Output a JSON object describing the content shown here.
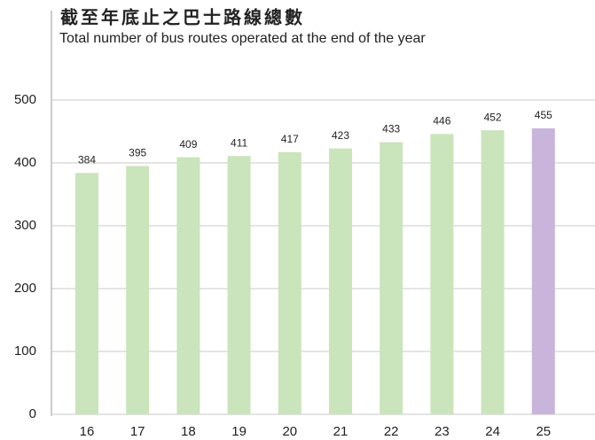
{
  "chart_data": {
    "type": "bar",
    "title": "截至年底止之巴士路線總數",
    "subtitle": "Total number of bus routes operated at the end of the year",
    "categories": [
      "16",
      "17",
      "18",
      "19",
      "20",
      "21",
      "22",
      "23",
      "24",
      "25"
    ],
    "values": [
      384,
      395,
      409,
      411,
      417,
      423,
      433,
      446,
      452,
      455
    ],
    "colors": [
      "#cae4bb",
      "#cae4bb",
      "#cae4bb",
      "#cae4bb",
      "#cae4bb",
      "#cae4bb",
      "#cae4bb",
      "#cae4bb",
      "#cae4bb",
      "#c9b5db"
    ],
    "ylim": [
      0,
      500
    ],
    "yticks": [
      0,
      100,
      200,
      300,
      400,
      500
    ],
    "grid": true
  }
}
